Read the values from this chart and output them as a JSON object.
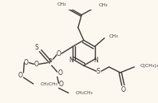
{
  "background_color": "#fdf8ef",
  "line_color": "#3a3a3a",
  "lw": 1.0,
  "figsize": [
    1.98,
    1.29
  ],
  "dpi": 100,
  "xlim": [
    0,
    198
  ],
  "ylim": [
    0,
    129
  ]
}
